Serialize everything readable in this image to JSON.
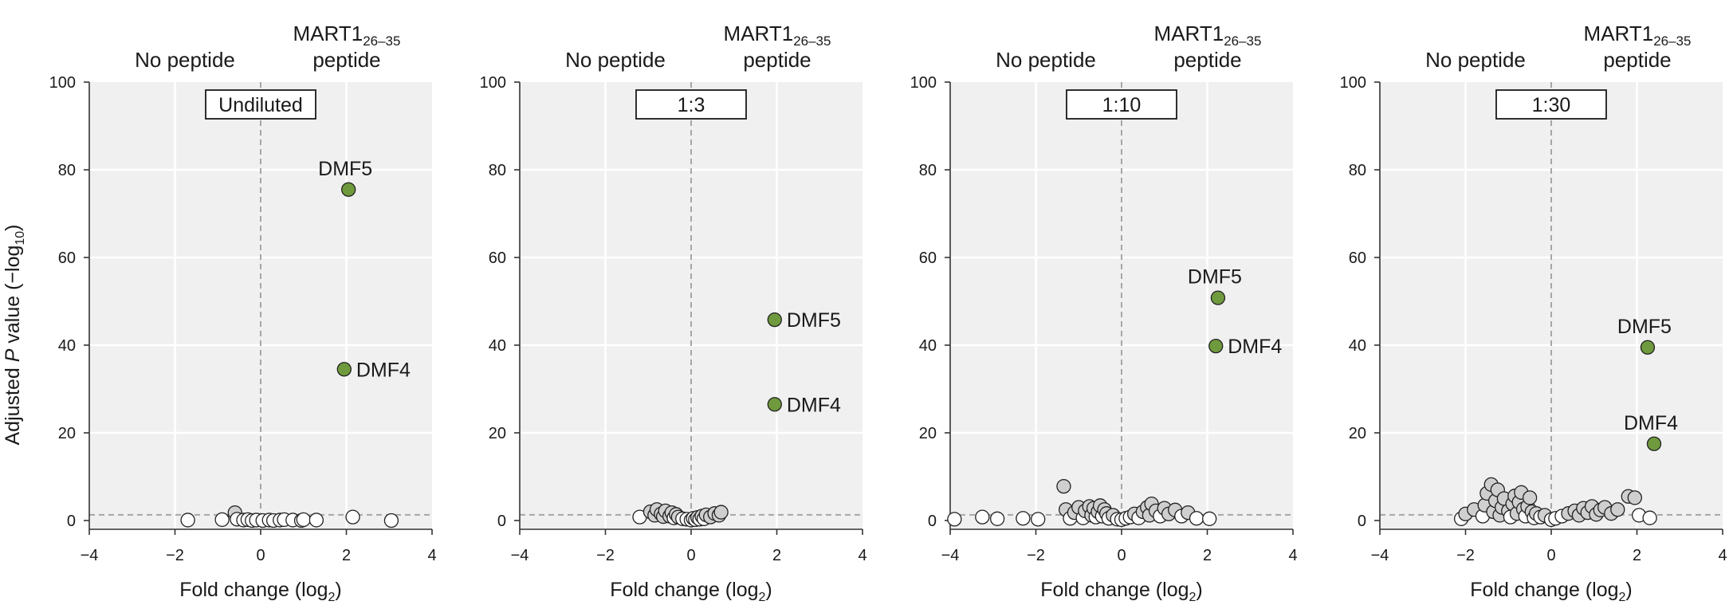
{
  "figure": {
    "ylabel_prefix": "Adjusted ",
    "ylabel_italic": "P",
    "ylabel_mid": " value (−log",
    "ylabel_sub": "10",
    "ylabel_suffix": ")"
  },
  "chart_data": [
    {
      "type": "scatter",
      "panel_label": "Undiluted",
      "left_header": "No peptide",
      "right_header_line1": "MART1",
      "right_header_sub": "26–35",
      "right_header_line2": "peptide",
      "xlabel_main": "Fold change (log",
      "xlabel_sub": "2",
      "xlabel_end": ")",
      "xlim": [
        -4,
        4
      ],
      "ylim": [
        -2,
        100
      ],
      "xticks": [
        "−4",
        "−2",
        "0",
        "2",
        "4"
      ],
      "yticks": [
        "0",
        "20",
        "40",
        "60",
        "80",
        "100"
      ],
      "threshold_y": 1.3,
      "highlighted": [
        {
          "label": "DMF5",
          "x": 2.05,
          "y": 75.5,
          "label_pos": "above"
        },
        {
          "label": "DMF4",
          "x": 1.95,
          "y": 34.5,
          "label_pos": "right"
        }
      ],
      "background_points": [
        {
          "x": -1.7,
          "y": 0.1,
          "c": "w"
        },
        {
          "x": -0.9,
          "y": 0.2,
          "c": "w"
        },
        {
          "x": -0.6,
          "y": 1.8,
          "c": "g"
        },
        {
          "x": -0.55,
          "y": 0.3,
          "c": "w"
        },
        {
          "x": -0.4,
          "y": 0.1,
          "c": "w"
        },
        {
          "x": -0.3,
          "y": 0.2,
          "c": "w"
        },
        {
          "x": -0.2,
          "y": 0.0,
          "c": "w"
        },
        {
          "x": -0.1,
          "y": 0.1,
          "c": "w"
        },
        {
          "x": 0.05,
          "y": 0.0,
          "c": "w"
        },
        {
          "x": 0.2,
          "y": 0.1,
          "c": "w"
        },
        {
          "x": 0.3,
          "y": 0.0,
          "c": "w"
        },
        {
          "x": 0.45,
          "y": 0.1,
          "c": "w"
        },
        {
          "x": 0.55,
          "y": 0.2,
          "c": "w"
        },
        {
          "x": 0.75,
          "y": 0.1,
          "c": "w"
        },
        {
          "x": 0.95,
          "y": 0.0,
          "c": "w"
        },
        {
          "x": 1.0,
          "y": 0.2,
          "c": "w"
        },
        {
          "x": 1.3,
          "y": 0.1,
          "c": "w"
        },
        {
          "x": 2.15,
          "y": 0.8,
          "c": "w"
        },
        {
          "x": 3.05,
          "y": 0.0,
          "c": "w"
        }
      ]
    },
    {
      "type": "scatter",
      "panel_label": "1:3",
      "left_header": "No peptide",
      "right_header_line1": "MART1",
      "right_header_sub": "26–35",
      "right_header_line2": "peptide",
      "xlabel_main": "Fold change (log",
      "xlabel_sub": "2",
      "xlabel_end": ")",
      "xlim": [
        -4,
        4
      ],
      "ylim": [
        -2,
        100
      ],
      "xticks": [
        "−4",
        "−2",
        "0",
        "2",
        "4"
      ],
      "yticks": [
        "0",
        "20",
        "40",
        "60",
        "80",
        "100"
      ],
      "threshold_y": 1.3,
      "highlighted": [
        {
          "label": "DMF5",
          "x": 1.95,
          "y": 45.8,
          "label_pos": "right"
        },
        {
          "label": "DMF4",
          "x": 1.95,
          "y": 26.5,
          "label_pos": "right"
        }
      ],
      "background_points": [
        {
          "x": -1.2,
          "y": 0.8,
          "c": "w"
        },
        {
          "x": -0.95,
          "y": 2.0,
          "c": "g"
        },
        {
          "x": -0.85,
          "y": 1.2,
          "c": "g"
        },
        {
          "x": -0.8,
          "y": 2.5,
          "c": "g"
        },
        {
          "x": -0.7,
          "y": 1.5,
          "c": "g"
        },
        {
          "x": -0.65,
          "y": 0.9,
          "c": "g"
        },
        {
          "x": -0.6,
          "y": 2.2,
          "c": "g"
        },
        {
          "x": -0.5,
          "y": 1.0,
          "c": "g"
        },
        {
          "x": -0.45,
          "y": 1.8,
          "c": "g"
        },
        {
          "x": -0.4,
          "y": 0.6,
          "c": "w"
        },
        {
          "x": -0.35,
          "y": 1.4,
          "c": "g"
        },
        {
          "x": -0.3,
          "y": 0.8,
          "c": "g"
        },
        {
          "x": -0.2,
          "y": 0.4,
          "c": "w"
        },
        {
          "x": -0.1,
          "y": 0.3,
          "c": "w"
        },
        {
          "x": 0.0,
          "y": 0.1,
          "c": "w"
        },
        {
          "x": 0.05,
          "y": 0.5,
          "c": "w"
        },
        {
          "x": 0.1,
          "y": 0.2,
          "c": "w"
        },
        {
          "x": 0.15,
          "y": 0.7,
          "c": "g"
        },
        {
          "x": 0.2,
          "y": 0.3,
          "c": "w"
        },
        {
          "x": 0.25,
          "y": 1.0,
          "c": "g"
        },
        {
          "x": 0.3,
          "y": 0.4,
          "c": "w"
        },
        {
          "x": 0.35,
          "y": 1.3,
          "c": "g"
        },
        {
          "x": 0.45,
          "y": 0.8,
          "c": "g"
        },
        {
          "x": 0.55,
          "y": 1.6,
          "c": "g"
        },
        {
          "x": 0.65,
          "y": 1.2,
          "c": "g"
        },
        {
          "x": 0.7,
          "y": 1.9,
          "c": "g"
        }
      ]
    },
    {
      "type": "scatter",
      "panel_label": "1:10",
      "left_header": "No peptide",
      "right_header_line1": "MART1",
      "right_header_sub": "26–35",
      "right_header_line2": "peptide",
      "xlabel_main": "Fold change (log",
      "xlabel_sub": "2",
      "xlabel_end": ")",
      "xlim": [
        -4,
        4
      ],
      "ylim": [
        -2,
        100
      ],
      "xticks": [
        "−4",
        "−2",
        "0",
        "2",
        "4"
      ],
      "yticks": [
        "0",
        "20",
        "40",
        "60",
        "80",
        "100"
      ],
      "threshold_y": 1.3,
      "highlighted": [
        {
          "label": "DMF5",
          "x": 2.25,
          "y": 50.8,
          "label_pos": "above"
        },
        {
          "label": "DMF4",
          "x": 2.2,
          "y": 39.8,
          "label_pos": "right"
        }
      ],
      "background_points": [
        {
          "x": -3.9,
          "y": 0.3,
          "c": "w"
        },
        {
          "x": -3.25,
          "y": 0.8,
          "c": "w"
        },
        {
          "x": -2.9,
          "y": 0.4,
          "c": "w"
        },
        {
          "x": -2.3,
          "y": 0.5,
          "c": "w"
        },
        {
          "x": -1.95,
          "y": 0.3,
          "c": "w"
        },
        {
          "x": -1.35,
          "y": 7.8,
          "c": "g"
        },
        {
          "x": -1.3,
          "y": 2.5,
          "c": "g"
        },
        {
          "x": -1.2,
          "y": 0.5,
          "c": "w"
        },
        {
          "x": -1.1,
          "y": 1.8,
          "c": "g"
        },
        {
          "x": -1.0,
          "y": 3.0,
          "c": "g"
        },
        {
          "x": -0.9,
          "y": 0.6,
          "c": "w"
        },
        {
          "x": -0.85,
          "y": 2.2,
          "c": "g"
        },
        {
          "x": -0.75,
          "y": 3.2,
          "c": "g"
        },
        {
          "x": -0.7,
          "y": 1.2,
          "c": "g"
        },
        {
          "x": -0.65,
          "y": 2.8,
          "c": "g"
        },
        {
          "x": -0.6,
          "y": 0.8,
          "c": "w"
        },
        {
          "x": -0.55,
          "y": 2.0,
          "c": "g"
        },
        {
          "x": -0.5,
          "y": 3.4,
          "c": "g"
        },
        {
          "x": -0.45,
          "y": 1.0,
          "c": "w"
        },
        {
          "x": -0.4,
          "y": 2.5,
          "c": "g"
        },
        {
          "x": -0.35,
          "y": 1.6,
          "c": "g"
        },
        {
          "x": -0.3,
          "y": 0.5,
          "c": "w"
        },
        {
          "x": -0.2,
          "y": 1.2,
          "c": "g"
        },
        {
          "x": -0.1,
          "y": 0.3,
          "c": "w"
        },
        {
          "x": 0.0,
          "y": 0.2,
          "c": "w"
        },
        {
          "x": 0.1,
          "y": 0.5,
          "c": "w"
        },
        {
          "x": 0.2,
          "y": 0.8,
          "c": "w"
        },
        {
          "x": 0.3,
          "y": 1.5,
          "c": "g"
        },
        {
          "x": 0.4,
          "y": 0.6,
          "c": "w"
        },
        {
          "x": 0.5,
          "y": 2.0,
          "c": "g"
        },
        {
          "x": 0.6,
          "y": 3.0,
          "c": "g"
        },
        {
          "x": 0.65,
          "y": 1.2,
          "c": "g"
        },
        {
          "x": 0.7,
          "y": 3.8,
          "c": "g"
        },
        {
          "x": 0.8,
          "y": 2.2,
          "c": "g"
        },
        {
          "x": 0.9,
          "y": 1.0,
          "c": "w"
        },
        {
          "x": 1.0,
          "y": 2.8,
          "c": "g"
        },
        {
          "x": 1.1,
          "y": 1.5,
          "c": "g"
        },
        {
          "x": 1.25,
          "y": 2.4,
          "c": "g"
        },
        {
          "x": 1.4,
          "y": 1.0,
          "c": "w"
        },
        {
          "x": 1.55,
          "y": 1.8,
          "c": "g"
        },
        {
          "x": 1.75,
          "y": 0.5,
          "c": "w"
        },
        {
          "x": 2.05,
          "y": 0.4,
          "c": "w"
        }
      ]
    },
    {
      "type": "scatter",
      "panel_label": "1:30",
      "left_header": "No peptide",
      "right_header_line1": "MART1",
      "right_header_sub": "26–35",
      "right_header_line2": "peptide",
      "xlabel_main": "Fold change (log",
      "xlabel_sub": "2",
      "xlabel_end": ")",
      "xlim": [
        -4,
        4
      ],
      "ylim": [
        -2,
        100
      ],
      "xticks": [
        "−4",
        "−2",
        "0",
        "2",
        "4"
      ],
      "yticks": [
        "0",
        "20",
        "40",
        "60",
        "80",
        "100"
      ],
      "threshold_y": 1.3,
      "highlighted": [
        {
          "label": "DMF5",
          "x": 2.25,
          "y": 39.5,
          "label_pos": "above"
        },
        {
          "label": "DMF4",
          "x": 2.4,
          "y": 17.5,
          "label_pos": "above"
        }
      ],
      "background_points": [
        {
          "x": -2.1,
          "y": 0.4,
          "c": "w"
        },
        {
          "x": -2.0,
          "y": 1.5,
          "c": "g"
        },
        {
          "x": -1.8,
          "y": 2.5,
          "c": "g"
        },
        {
          "x": -1.6,
          "y": 1.0,
          "c": "w"
        },
        {
          "x": -1.55,
          "y": 3.5,
          "c": "g"
        },
        {
          "x": -1.5,
          "y": 6.2,
          "c": "g"
        },
        {
          "x": -1.4,
          "y": 8.2,
          "c": "g"
        },
        {
          "x": -1.35,
          "y": 2.0,
          "c": "g"
        },
        {
          "x": -1.3,
          "y": 4.5,
          "c": "g"
        },
        {
          "x": -1.25,
          "y": 7.0,
          "c": "g"
        },
        {
          "x": -1.2,
          "y": 1.2,
          "c": "g"
        },
        {
          "x": -1.15,
          "y": 3.0,
          "c": "g"
        },
        {
          "x": -1.1,
          "y": 5.0,
          "c": "g"
        },
        {
          "x": -1.0,
          "y": 2.2,
          "c": "g"
        },
        {
          "x": -0.95,
          "y": 0.8,
          "c": "w"
        },
        {
          "x": -0.9,
          "y": 3.8,
          "c": "g"
        },
        {
          "x": -0.85,
          "y": 5.6,
          "c": "g"
        },
        {
          "x": -0.8,
          "y": 1.6,
          "c": "g"
        },
        {
          "x": -0.75,
          "y": 4.2,
          "c": "g"
        },
        {
          "x": -0.7,
          "y": 6.4,
          "c": "g"
        },
        {
          "x": -0.65,
          "y": 2.6,
          "c": "g"
        },
        {
          "x": -0.6,
          "y": 1.0,
          "c": "w"
        },
        {
          "x": -0.55,
          "y": 3.2,
          "c": "g"
        },
        {
          "x": -0.5,
          "y": 5.2,
          "c": "g"
        },
        {
          "x": -0.45,
          "y": 2.0,
          "c": "g"
        },
        {
          "x": -0.4,
          "y": 0.6,
          "c": "w"
        },
        {
          "x": -0.35,
          "y": 1.6,
          "c": "g"
        },
        {
          "x": -0.25,
          "y": 0.8,
          "c": "w"
        },
        {
          "x": -0.15,
          "y": 1.2,
          "c": "g"
        },
        {
          "x": 0.0,
          "y": 0.2,
          "c": "w"
        },
        {
          "x": 0.1,
          "y": 0.5,
          "c": "w"
        },
        {
          "x": 0.25,
          "y": 1.0,
          "c": "w"
        },
        {
          "x": 0.4,
          "y": 1.6,
          "c": "g"
        },
        {
          "x": 0.55,
          "y": 2.2,
          "c": "g"
        },
        {
          "x": 0.65,
          "y": 1.2,
          "c": "g"
        },
        {
          "x": 0.75,
          "y": 2.8,
          "c": "g"
        },
        {
          "x": 0.85,
          "y": 1.8,
          "c": "g"
        },
        {
          "x": 0.95,
          "y": 3.2,
          "c": "g"
        },
        {
          "x": 1.05,
          "y": 1.4,
          "c": "g"
        },
        {
          "x": 1.15,
          "y": 2.4,
          "c": "g"
        },
        {
          "x": 1.25,
          "y": 3.0,
          "c": "g"
        },
        {
          "x": 1.4,
          "y": 1.6,
          "c": "g"
        },
        {
          "x": 1.55,
          "y": 2.5,
          "c": "g"
        },
        {
          "x": 1.8,
          "y": 5.5,
          "c": "g"
        },
        {
          "x": 1.95,
          "y": 5.2,
          "c": "g"
        },
        {
          "x": 2.05,
          "y": 1.2,
          "c": "w"
        },
        {
          "x": 2.3,
          "y": 0.6,
          "c": "w"
        }
      ]
    }
  ],
  "colors": {
    "panel_bg": "#f0f0f0",
    "grid": "#ffffff",
    "axis": "#333333",
    "guide": "#a6a6a6",
    "highlight": "#6f9a3d",
    "point_gray": "#cfcfcf",
    "point_white": "#ffffff",
    "point_stroke": "#222222"
  }
}
